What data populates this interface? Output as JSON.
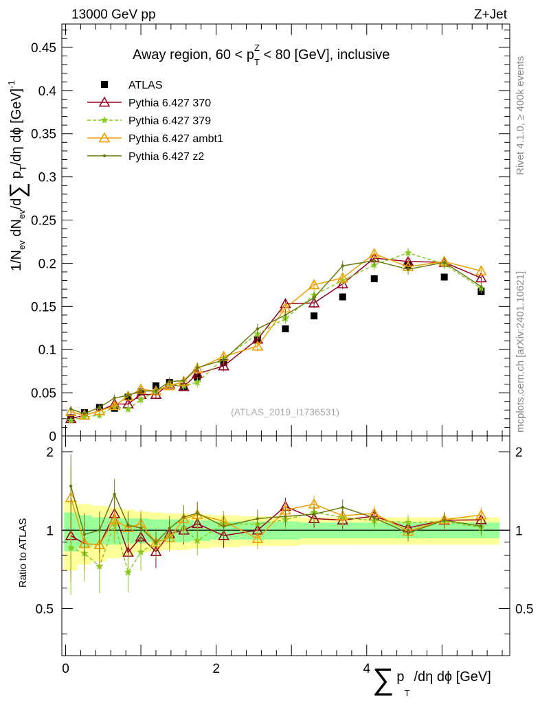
{
  "header": {
    "left": "13000 GeV pp",
    "right": "Z+Jet"
  },
  "side_text": {
    "rivet": "Rivet 4.1.0, ≥ 400k events",
    "mcplots": "mcplots.cern.ch [arXiv:2401.10621]"
  },
  "colors": {
    "atlas": "#000000",
    "p370": "#990022",
    "p379": "#88cc22",
    "ambt1": "#f0a000",
    "z2": "#6a7a10",
    "band_inner": "#99ff99",
    "band_outer": "#ffff99"
  },
  "chart_data": {
    "type": "line",
    "title": "Away region, 60 < p_T^Z < 80 [GeV], inclusive",
    "title_parts": {
      "pre": "Away region, 60 < p",
      "sub": "T",
      "sup": "Z",
      "post": " < 80 [GeV], inclusive"
    },
    "analysis_label": "(ATLAS_2019_I1736531)",
    "ylabel": "1/N_ev dN_ev/d∑ p_T/dη dϕ [GeV]^-1",
    "ylabel_parts": {
      "a": "1/N",
      "a_sub": "ev",
      "b": " dN",
      "b_sub": "ev",
      "c": "/d",
      "sum": "∑",
      "d": " p",
      "d_sub": "T",
      "e": "/dη dϕ  [GeV]",
      "e_sup": "-1"
    },
    "xlabel": "∑ p_T /dη dϕ [GeV]",
    "xlabel_parts": {
      "sum": "∑",
      "p": "p",
      "sub": "T",
      "rest": "/dη dϕ [GeV]"
    },
    "ratio_ylabel": "Ratio to ATLAS",
    "xlim": [
      -0.05,
      5.9
    ],
    "ylim": [
      0,
      0.477
    ],
    "ratio_ylim": [
      0.33,
      2.3
    ],
    "x_ticks": [
      "0",
      "2",
      "4"
    ],
    "y_ticks": [
      "0",
      "0.05",
      "0.1",
      "0.15",
      "0.2",
      "0.25",
      "0.3",
      "0.35",
      "0.4",
      "0.45"
    ],
    "ratio_ticks": [
      "0.5",
      "1",
      "2"
    ],
    "x": [
      0.07,
      0.25,
      0.45,
      0.65,
      0.83,
      1.0,
      1.2,
      1.38,
      1.57,
      1.75,
      2.1,
      2.55,
      2.92,
      3.3,
      3.68,
      4.1,
      4.55,
      5.03,
      5.52
    ],
    "series": [
      {
        "name": "ATLAS",
        "marker": "square",
        "values": [
          0.021,
          0.027,
          0.033,
          0.032,
          0.045,
          0.051,
          0.058,
          0.062,
          0.057,
          0.068,
          0.085,
          0.112,
          0.124,
          0.139,
          0.161,
          0.182,
          0.198,
          0.184,
          0.167
        ],
        "errors": [
          0.003,
          0.003,
          0.003,
          0.003,
          0.003,
          0.003,
          0.003,
          0.003,
          0.003,
          0.003,
          0.003,
          0.004,
          0.004,
          0.004,
          0.004,
          0.004,
          0.004,
          0.004,
          0.004
        ]
      },
      {
        "name": "Pythia 6.427 370",
        "marker": "triangle",
        "style": "solid",
        "values": [
          0.02,
          0.024,
          0.029,
          0.037,
          0.037,
          0.048,
          0.048,
          0.06,
          0.057,
          0.072,
          0.081,
          0.112,
          0.153,
          0.154,
          0.176,
          0.206,
          0.202,
          0.201,
          0.183
        ],
        "errors": [
          0.003,
          0.003,
          0.004,
          0.004,
          0.004,
          0.005,
          0.005,
          0.005,
          0.005,
          0.006,
          0.006,
          0.006,
          0.006,
          0.006,
          0.006,
          0.006,
          0.006,
          0.006,
          0.006
        ]
      },
      {
        "name": "Pythia 6.427 379",
        "marker": "star",
        "style": "dashed",
        "values": [
          0.018,
          0.022,
          0.024,
          0.034,
          0.031,
          0.042,
          0.052,
          0.059,
          0.058,
          0.062,
          0.09,
          0.118,
          0.136,
          0.163,
          0.18,
          0.198,
          0.212,
          0.199,
          0.171
        ],
        "errors": [
          0.003,
          0.003,
          0.004,
          0.004,
          0.004,
          0.005,
          0.005,
          0.005,
          0.005,
          0.006,
          0.006,
          0.006,
          0.006,
          0.006,
          0.006,
          0.006,
          0.006,
          0.006,
          0.006
        ]
      },
      {
        "name": "Pythia 6.427 ambt1",
        "marker": "triangle",
        "style": "solid",
        "values": [
          0.028,
          0.024,
          0.029,
          0.035,
          0.046,
          0.054,
          0.052,
          0.058,
          0.063,
          0.078,
          0.092,
          0.104,
          0.148,
          0.175,
          0.183,
          0.211,
          0.196,
          0.202,
          0.191
        ],
        "errors": [
          0.003,
          0.003,
          0.004,
          0.004,
          0.004,
          0.005,
          0.005,
          0.005,
          0.005,
          0.006,
          0.006,
          0.006,
          0.006,
          0.006,
          0.006,
          0.006,
          0.006,
          0.006,
          0.006
        ]
      },
      {
        "name": "Pythia 6.427 z2",
        "marker": "dot",
        "style": "solid",
        "values": [
          0.031,
          0.026,
          0.033,
          0.044,
          0.047,
          0.052,
          0.052,
          0.063,
          0.064,
          0.079,
          0.088,
          0.124,
          0.14,
          0.16,
          0.197,
          0.203,
          0.193,
          0.201,
          0.173
        ],
        "errors": [
          0.004,
          0.003,
          0.004,
          0.004,
          0.004,
          0.005,
          0.005,
          0.005,
          0.005,
          0.006,
          0.006,
          0.006,
          0.006,
          0.006,
          0.006,
          0.006,
          0.006,
          0.006,
          0.006
        ]
      }
    ],
    "ratio_band": {
      "inner": [
        0.17,
        0.14,
        0.12,
        0.12,
        0.11,
        0.11,
        0.1,
        0.1,
        0.1,
        0.09,
        0.08,
        0.08,
        0.08,
        0.07,
        0.07,
        0.07,
        0.07,
        0.07,
        0.07
      ],
      "outer": [
        0.3,
        0.26,
        0.24,
        0.22,
        0.2,
        0.18,
        0.17,
        0.16,
        0.16,
        0.15,
        0.14,
        0.13,
        0.13,
        0.12,
        0.12,
        0.12,
        0.12,
        0.12,
        0.12
      ]
    }
  }
}
